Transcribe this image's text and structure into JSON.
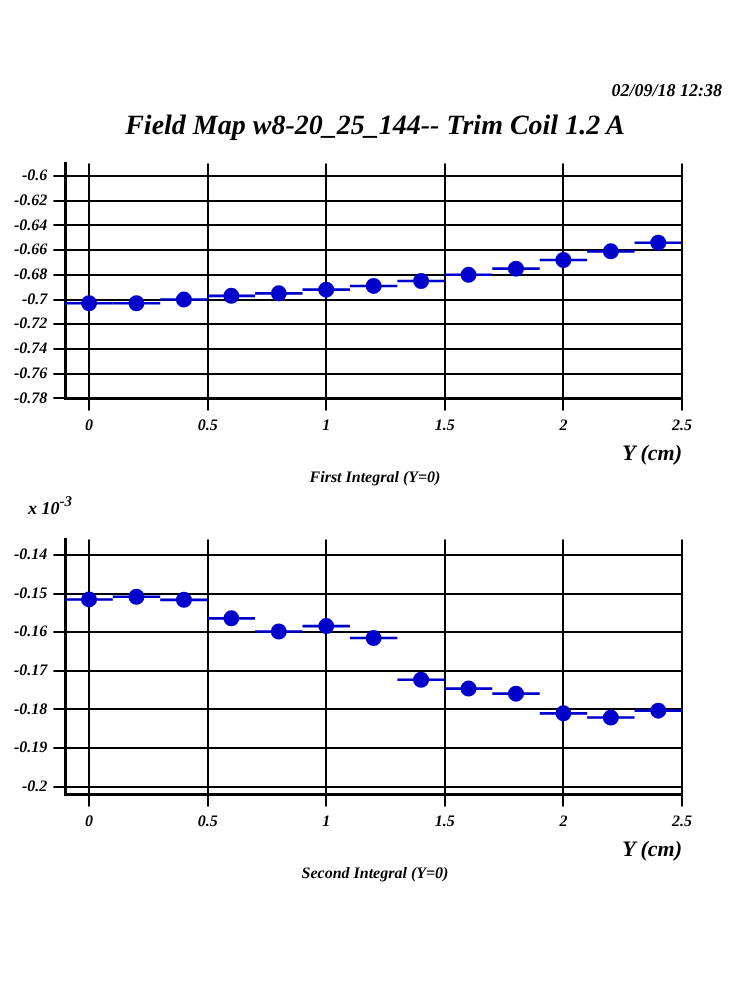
{
  "chart_data": [
    {
      "type": "scatter",
      "title": "Field Map w8-20_25_144-- Trim Coil 1.2 A",
      "xlabel": "Y (cm)",
      "annotations": [
        "02/09/18  12:38",
        "First Integral (Y=0)"
      ],
      "x": [
        0,
        0.2,
        0.4,
        0.6,
        0.8,
        1.0,
        1.2,
        1.4,
        1.6,
        1.8,
        2.0,
        2.2,
        2.4
      ],
      "series": [
        {
          "color": "#0000cc",
          "values": [
            -0.703,
            -0.703,
            -0.7,
            -0.697,
            -0.695,
            -0.692,
            -0.689,
            -0.685,
            -0.68,
            -0.675,
            -0.668,
            -0.661,
            -0.654
          ],
          "xerrors": [
            0.1,
            0.1,
            0.1,
            0.1,
            0.1,
            0.1,
            0.1,
            0.1,
            0.1,
            0.1,
            0.1,
            0.1,
            0.1
          ]
        }
      ],
      "xlim": [
        -0.1,
        2.5
      ],
      "xticks": [
        0,
        0.5,
        1,
        1.5,
        2,
        2.5
      ],
      "ylim": [
        -0.78,
        -0.59
      ],
      "yticks": [
        -0.78,
        -0.76,
        -0.74,
        -0.72,
        -0.7,
        -0.68,
        -0.66,
        -0.64,
        -0.62,
        -0.6
      ],
      "grid": true,
      "legend": false,
      "marker": "circle"
    },
    {
      "type": "scatter",
      "xlabel": "Y (cm)",
      "annotations": [
        "x 10$^{-3}$",
        "Second Integral (Y=0)"
      ],
      "x": [
        0,
        0.2,
        0.4,
        0.6,
        0.8,
        1.0,
        1.2,
        1.4,
        1.6,
        1.8,
        2.0,
        2.2,
        2.4
      ],
      "series": [
        {
          "color": "#0000cc",
          "values": [
            -0.1515,
            -0.1508,
            -0.1516,
            -0.1564,
            -0.1598,
            -0.1584,
            -0.1615,
            -0.1723,
            -0.1746,
            -0.1759,
            -0.181,
            -0.1821,
            -0.1803
          ],
          "xerrors": [
            0.1,
            0.1,
            0.1,
            0.1,
            0.1,
            0.1,
            0.1,
            0.1,
            0.1,
            0.1,
            0.1,
            0.1,
            0.1
          ]
        }
      ],
      "xlim": [
        -0.1,
        2.5
      ],
      "xticks": [
        0,
        0.5,
        1,
        1.5,
        2,
        2.5
      ],
      "ylim": [
        -0.202,
        -0.136
      ],
      "yticks": [
        -0.2,
        -0.19,
        -0.18,
        -0.17,
        -0.16,
        -0.15,
        -0.14
      ],
      "grid": true,
      "legend": false,
      "marker": "circle"
    }
  ]
}
